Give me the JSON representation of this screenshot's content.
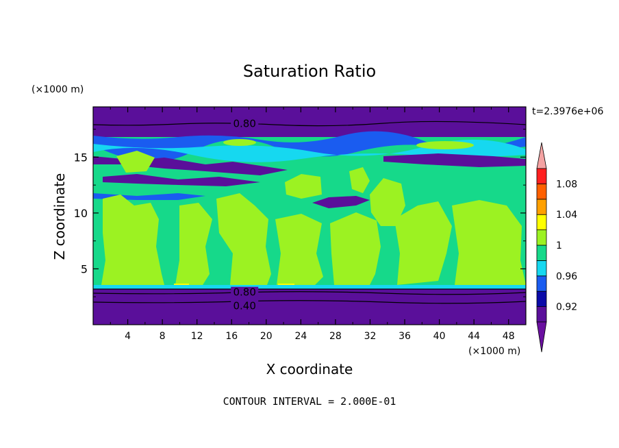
{
  "chart_data": {
    "type": "heatmap",
    "title": "Saturation Ratio",
    "xlabel": "X coordinate",
    "ylabel": "Z coordinate",
    "x_unit": "(×1000 m)",
    "y_unit": "(×1000 m)",
    "time_label": "t=2.3976e+06",
    "footer": "CONTOUR INTERVAL = 2.000E-01",
    "xlim": [
      0,
      50
    ],
    "ylim": [
      0,
      19.5
    ],
    "x_ticks": [
      4,
      8,
      12,
      16,
      20,
      24,
      28,
      32,
      36,
      40,
      44,
      48
    ],
    "y_ticks": [
      5,
      10,
      15
    ],
    "contour_labels": [
      {
        "text": "0.80",
        "x": 17.5,
        "z": 18.0
      },
      {
        "text": "0.80",
        "x": 17.5,
        "z": 2.9
      },
      {
        "text": "0.40",
        "x": 17.5,
        "z": 1.7
      }
    ],
    "colorbar": {
      "levels": [
        0.9,
        0.92,
        0.94,
        0.96,
        0.98,
        1.0,
        1.02,
        1.04,
        1.06,
        1.08,
        1.1
      ],
      "labels": [
        "0.92",
        "0.96",
        "1",
        "1.04",
        "1.08"
      ],
      "colors": [
        "#5a0f9a",
        "#0a0aa8",
        "#1a5cf0",
        "#16d8f0",
        "#16d98a",
        "#9cf222",
        "#ffff00",
        "#ffa000",
        "#ff6000",
        "#ff2020"
      ],
      "under_color": "#6a0fa0",
      "over_color": "#f4a3a3"
    }
  }
}
